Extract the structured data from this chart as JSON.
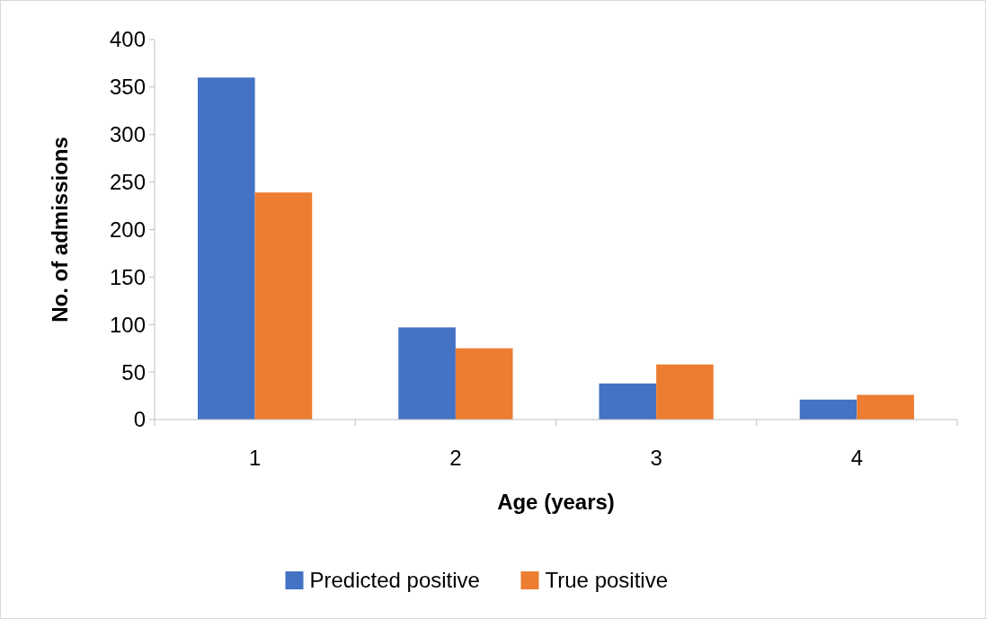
{
  "chart_data": {
    "type": "bar",
    "xlabel": "Age (years)",
    "ylabel": "No. of admissions",
    "categories": [
      "1",
      "2",
      "3",
      "4"
    ],
    "series": [
      {
        "name": "Predicted positive",
        "color": "#4472c4",
        "values": [
          360,
          97,
          38,
          21
        ]
      },
      {
        "name": "True positive",
        "color": "#ed7d31",
        "values": [
          239,
          75,
          58,
          26
        ]
      }
    ],
    "ylim": [
      0,
      400
    ],
    "yticks": [
      0,
      50,
      100,
      150,
      200,
      250,
      300,
      350,
      400
    ],
    "grid": false,
    "legend": "bottom"
  }
}
